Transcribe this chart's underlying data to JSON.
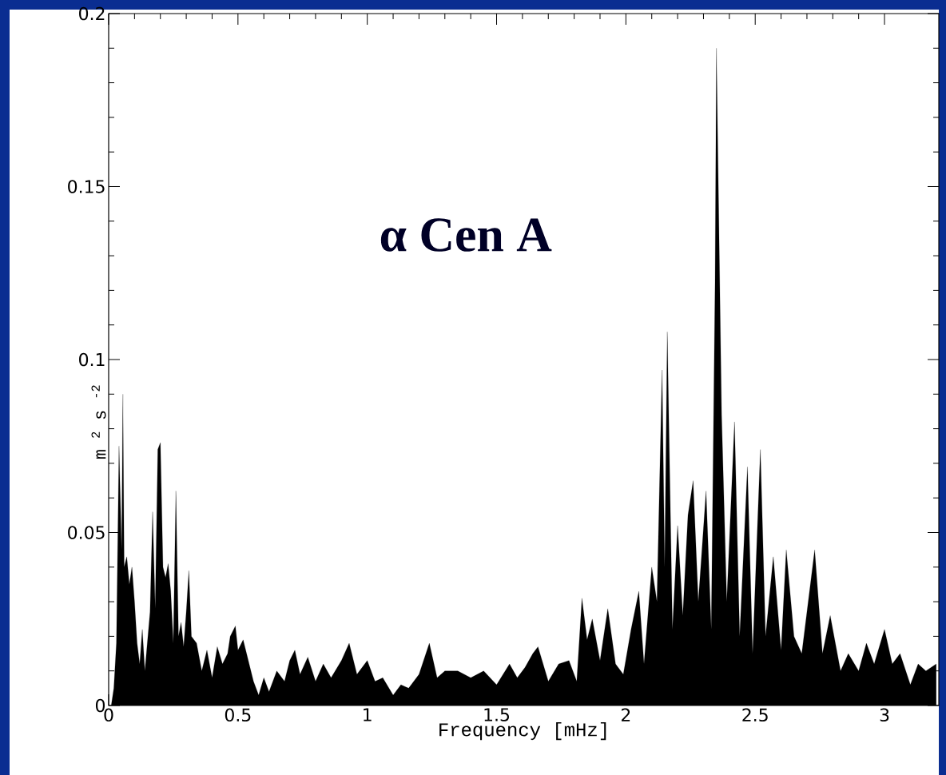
{
  "chart_data": {
    "type": "area",
    "xlabel": "Frequency   [mHz]",
    "ylabel": "m $^{2}$ s $^{-2}$",
    "annotations": [
      "α Cen A"
    ],
    "xlim": [
      0,
      3.21
    ],
    "ylim": [
      0,
      0.2
    ],
    "xticks": [
      0,
      0.5,
      1,
      1.5,
      2,
      2.5,
      3
    ],
    "yticks": [
      0,
      0.05,
      0.1,
      0.15,
      0.2
    ],
    "grid": false,
    "marker": "none",
    "series": [
      {
        "color": "#000000",
        "x": [
          0.01,
          0.02,
          0.03,
          0.04,
          0.05,
          0.055,
          0.06,
          0.07,
          0.08,
          0.09,
          0.1,
          0.11,
          0.12,
          0.13,
          0.14,
          0.16,
          0.17,
          0.18,
          0.19,
          0.2,
          0.21,
          0.22,
          0.23,
          0.24,
          0.25,
          0.26,
          0.27,
          0.28,
          0.29,
          0.3,
          0.31,
          0.32,
          0.34,
          0.36,
          0.38,
          0.4,
          0.42,
          0.44,
          0.46,
          0.47,
          0.49,
          0.5,
          0.52,
          0.54,
          0.56,
          0.58,
          0.6,
          0.62,
          0.65,
          0.68,
          0.7,
          0.72,
          0.74,
          0.77,
          0.8,
          0.83,
          0.86,
          0.9,
          0.93,
          0.96,
          1.0,
          1.03,
          1.06,
          1.1,
          1.13,
          1.16,
          1.2,
          1.24,
          1.27,
          1.3,
          1.35,
          1.4,
          1.45,
          1.5,
          1.55,
          1.58,
          1.61,
          1.64,
          1.66,
          1.7,
          1.74,
          1.78,
          1.81,
          1.83,
          1.85,
          1.87,
          1.9,
          1.93,
          1.96,
          1.99,
          2.02,
          2.05,
          2.07,
          2.1,
          2.12,
          2.14,
          2.15,
          2.16,
          2.18,
          2.2,
          2.22,
          2.24,
          2.26,
          2.28,
          2.31,
          2.33,
          2.345,
          2.35,
          2.37,
          2.39,
          2.42,
          2.44,
          2.47,
          2.49,
          2.52,
          2.54,
          2.57,
          2.6,
          2.62,
          2.65,
          2.68,
          2.73,
          2.76,
          2.79,
          2.83,
          2.86,
          2.9,
          2.93,
          2.96,
          3.0,
          3.03,
          3.06,
          3.1,
          3.13,
          3.16,
          3.2
        ],
        "values": [
          0,
          0.005,
          0.018,
          0.075,
          0.045,
          0.09,
          0.04,
          0.043,
          0.035,
          0.04,
          0.03,
          0.018,
          0.012,
          0.022,
          0.01,
          0.027,
          0.056,
          0.028,
          0.074,
          0.076,
          0.04,
          0.037,
          0.041,
          0.033,
          0.018,
          0.062,
          0.02,
          0.024,
          0.017,
          0.027,
          0.039,
          0.02,
          0.018,
          0.01,
          0.016,
          0.008,
          0.017,
          0.012,
          0.015,
          0.02,
          0.023,
          0.016,
          0.019,
          0.013,
          0.007,
          0.003,
          0.008,
          0.004,
          0.01,
          0.007,
          0.013,
          0.016,
          0.009,
          0.014,
          0.007,
          0.012,
          0.008,
          0.013,
          0.018,
          0.009,
          0.013,
          0.007,
          0.008,
          0.003,
          0.006,
          0.005,
          0.009,
          0.018,
          0.008,
          0.01,
          0.01,
          0.008,
          0.01,
          0.006,
          0.012,
          0.008,
          0.011,
          0.015,
          0.017,
          0.007,
          0.012,
          0.013,
          0.007,
          0.031,
          0.019,
          0.025,
          0.013,
          0.028,
          0.012,
          0.009,
          0.022,
          0.033,
          0.012,
          0.04,
          0.03,
          0.097,
          0.04,
          0.108,
          0.022,
          0.052,
          0.026,
          0.055,
          0.065,
          0.03,
          0.062,
          0.022,
          0.123,
          0.19,
          0.084,
          0.03,
          0.082,
          0.02,
          0.069,
          0.015,
          0.074,
          0.02,
          0.043,
          0.016,
          0.045,
          0.02,
          0.015,
          0.045,
          0.015,
          0.026,
          0.01,
          0.015,
          0.01,
          0.018,
          0.012,
          0.022,
          0.012,
          0.015,
          0.006,
          0.012,
          0.01,
          0.012
        ]
      }
    ]
  }
}
